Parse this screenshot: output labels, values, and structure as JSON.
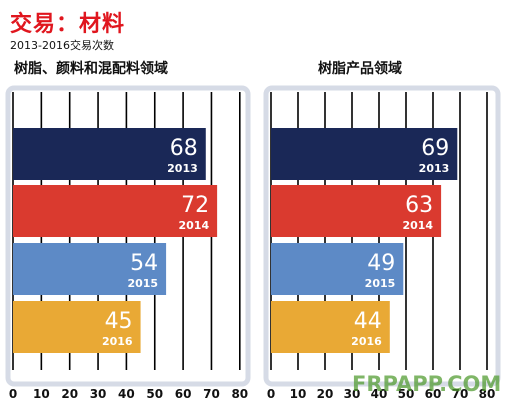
{
  "header": {
    "title": "交易：材料",
    "subtitle": "2013-2016交易次数"
  },
  "watermark": "FRPAPP.COM",
  "colors": {
    "2013": "#1a2857",
    "2014": "#da3a2f",
    "2015": "#5d8ac6",
    "2016": "#e9a935",
    "frame": "#d6dbe6",
    "grid": "#000000"
  },
  "chart_data": [
    {
      "type": "bar",
      "orientation": "horizontal",
      "title": "树脂、颜料和混配料领域",
      "categories": [
        "2013",
        "2014",
        "2015",
        "2016"
      ],
      "values": [
        68,
        72,
        54,
        45
      ],
      "xlim": [
        0,
        80
      ],
      "xticks": [
        0,
        10,
        20,
        30,
        40,
        50,
        60,
        70,
        80
      ],
      "grid": true
    },
    {
      "type": "bar",
      "orientation": "horizontal",
      "title": "树脂产品领域",
      "categories": [
        "2013",
        "2014",
        "2015",
        "2016"
      ],
      "values": [
        69,
        63,
        49,
        44
      ],
      "xlim": [
        0,
        80
      ],
      "xticks": [
        0,
        10,
        20,
        30,
        40,
        50,
        60,
        70,
        80
      ],
      "grid": true
    }
  ]
}
